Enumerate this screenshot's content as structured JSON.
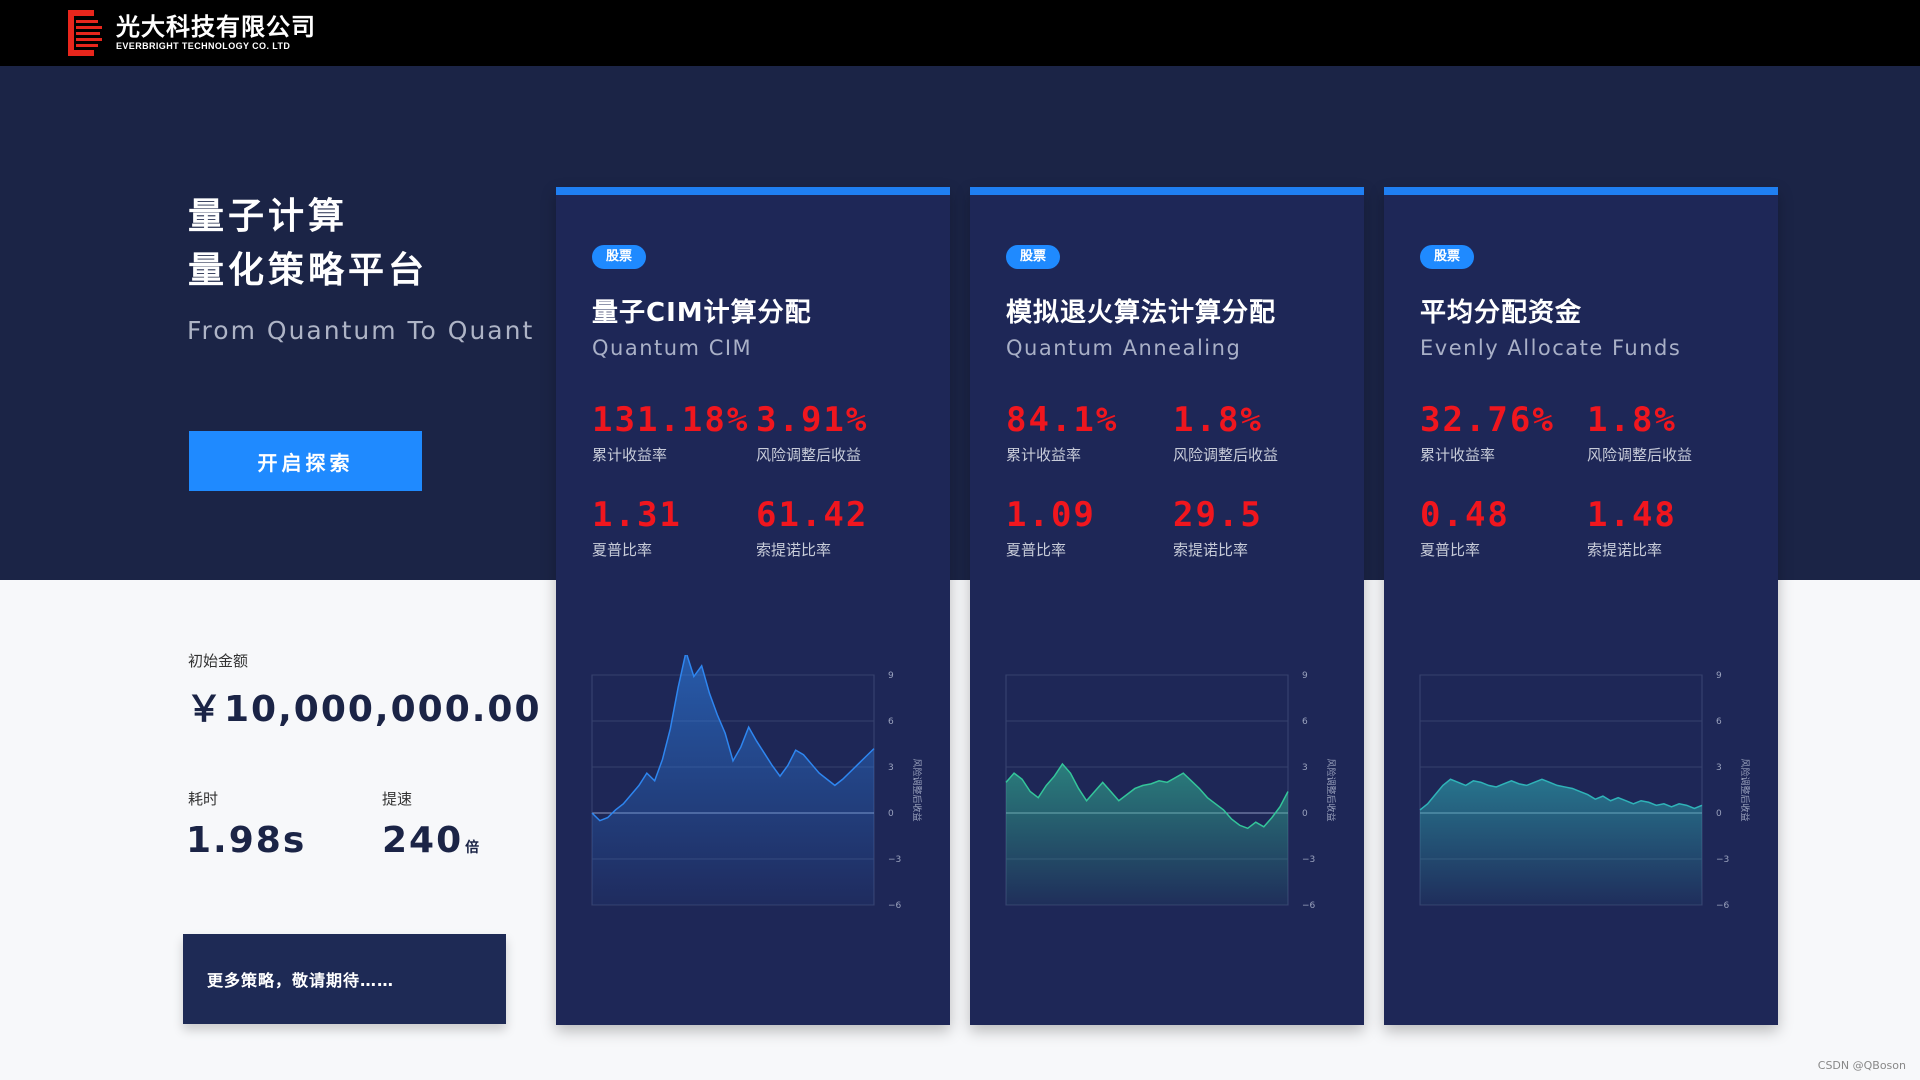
{
  "header": {
    "company_cn": "光大科技有限公司",
    "company_en": "EVERBRIGHT TECHNOLOGY CO. LTD",
    "logo_icon": "everbright-logo-icon"
  },
  "hero": {
    "title_line1": "量子计算",
    "title_line2": "量化策略平台",
    "subtitle": "From Quantum To Quant",
    "explore_label": "开启探索"
  },
  "stats": {
    "initial_label": "初始金额",
    "initial_amount": "￥10,000,000.00",
    "time_label": "耗时",
    "time_value": "1.98s",
    "speedup_label": "提速",
    "speedup_value": "240",
    "speedup_unit": "倍",
    "more_label": "更多策略，敬请期待……"
  },
  "colors": {
    "accent": "#1f8aff",
    "navy": "#1b2446",
    "card_bg": "#1e2757",
    "metric_red": "#f0161e"
  },
  "cards": [
    {
      "badge": "股票",
      "title": "量子CIM计算分配",
      "subtitle": "Quantum CIM",
      "metrics": [
        {
          "value": "131.18%",
          "label": "累计收益率"
        },
        {
          "value": "3.91%",
          "label": "风险调整后收益"
        },
        {
          "value": "1.31",
          "label": "夏普比率"
        },
        {
          "value": "61.42",
          "label": "索提诺比率"
        }
      ],
      "chart_data": {
        "type": "area",
        "y_axis_label": "风险调整后收益",
        "y_ticks": [
          "9",
          "6",
          "3",
          "0",
          "−3",
          "−6"
        ],
        "ylim": [
          -6,
          9
        ],
        "color": "#2e86f0",
        "values": [
          0,
          -0.5,
          -0.3,
          0.2,
          0.6,
          1.2,
          1.8,
          2.6,
          2.1,
          3.5,
          5.5,
          8.2,
          10.5,
          8.9,
          9.6,
          7.8,
          6.4,
          5.2,
          3.4,
          4.3,
          5.6,
          4.7,
          3.9,
          3.1,
          2.4,
          3.1,
          4.1,
          3.8,
          3.2,
          2.6,
          2.2,
          1.8,
          2.2,
          2.7,
          3.2,
          3.7,
          4.2
        ]
      }
    },
    {
      "badge": "股票",
      "title": "模拟退火算法计算分配",
      "subtitle": "Quantum Annealing",
      "metrics": [
        {
          "value": "84.1%",
          "label": "累计收益率"
        },
        {
          "value": "1.8%",
          "label": "风险调整后收益"
        },
        {
          "value": "1.09",
          "label": "夏普比率"
        },
        {
          "value": "29.5",
          "label": "索提诺比率"
        }
      ],
      "chart_data": {
        "type": "area",
        "y_axis_label": "风险调整后收益",
        "y_ticks": [
          "9",
          "6",
          "3",
          "0",
          "−3",
          "−6"
        ],
        "ylim": [
          -6,
          9
        ],
        "color": "#34c59a",
        "values": [
          2,
          2.6,
          2.2,
          1.4,
          1.0,
          1.8,
          2.4,
          3.2,
          2.6,
          1.6,
          0.8,
          1.4,
          2.0,
          1.4,
          0.8,
          1.2,
          1.6,
          1.8,
          1.9,
          2.1,
          2.0,
          2.3,
          2.6,
          2.1,
          1.6,
          1.0,
          0.6,
          0.2,
          -0.4,
          -0.8,
          -1.0,
          -0.6,
          -0.9,
          -0.3,
          0.4,
          1.4
        ]
      }
    },
    {
      "badge": "股票",
      "title": "平均分配资金",
      "subtitle": "Evenly Allocate Funds",
      "metrics": [
        {
          "value": "32.76%",
          "label": "累计收益率"
        },
        {
          "value": "1.8%",
          "label": "风险调整后收益"
        },
        {
          "value": "0.48",
          "label": "夏普比率"
        },
        {
          "value": "1.48",
          "label": "索提诺比率"
        }
      ],
      "chart_data": {
        "type": "area",
        "y_axis_label": "风险调整后收益",
        "y_ticks": [
          "9",
          "6",
          "3",
          "0",
          "−3",
          "−6"
        ],
        "ylim": [
          -6,
          9
        ],
        "color": "#2fb3b8",
        "values": [
          0.2,
          0.6,
          1.2,
          1.8,
          2.2,
          2.0,
          1.8,
          2.1,
          2.0,
          1.8,
          1.7,
          1.9,
          2.1,
          1.9,
          1.8,
          2.0,
          2.2,
          2.0,
          1.8,
          1.7,
          1.6,
          1.4,
          1.2,
          0.9,
          1.1,
          0.8,
          1.0,
          0.8,
          0.6,
          0.8,
          0.7,
          0.5,
          0.6,
          0.4,
          0.6,
          0.5,
          0.3,
          0.5
        ]
      }
    }
  ],
  "footer": {
    "credit": "CSDN @QBoson"
  }
}
